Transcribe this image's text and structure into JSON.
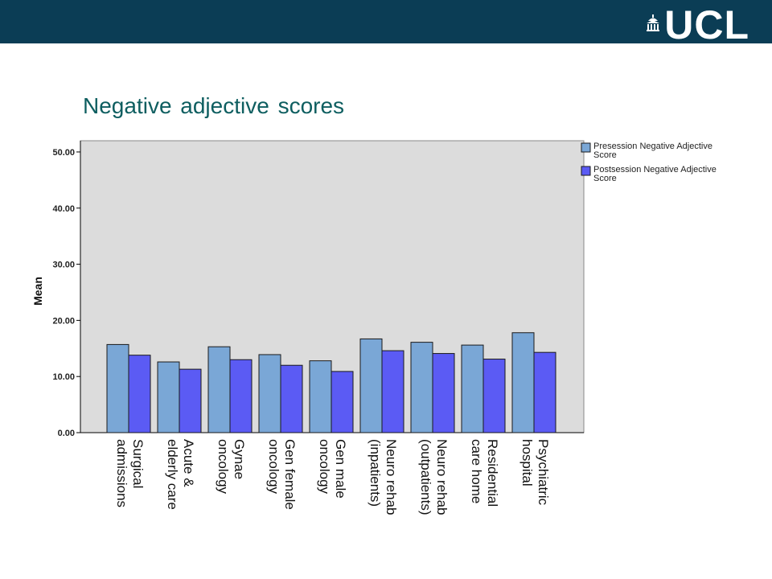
{
  "header": {
    "logo_text": "UCL",
    "emblem": "ucl-portico-icon",
    "bar_color": "#0b3d55"
  },
  "slide": {
    "title": "Negative adjective scores"
  },
  "chart_data": {
    "type": "bar",
    "ylabel": "Mean",
    "ylim": [
      0,
      52
    ],
    "yticks": [
      0,
      10,
      20,
      30,
      40,
      50
    ],
    "ytick_labels": [
      "0.00",
      "10.00",
      "20.00",
      "30.00",
      "40.00",
      "50.00"
    ],
    "legend_position": "right",
    "grid": false,
    "categories": [
      "Surgical\nadmissions",
      "Acute &\nelderly care",
      "Gynae\noncology",
      "Gen female\noncology",
      "Gen male\noncology",
      "Neuro rehab\n(inpatients)",
      "Neuro rehab\n(outpatients)",
      "Residential\ncare home",
      "Psychiatric\nhospital"
    ],
    "series": [
      {
        "name": "Presession Negative Adjective Score",
        "color": "#7aa7d6",
        "values": [
          15.7,
          12.6,
          15.3,
          13.9,
          12.8,
          16.7,
          16.1,
          15.6,
          17.8
        ]
      },
      {
        "name": "Postsession Negative Adjective Score",
        "color": "#5b5bf4",
        "values": [
          13.8,
          11.3,
          13.0,
          12.0,
          10.9,
          14.6,
          14.1,
          13.1,
          14.3
        ]
      }
    ]
  }
}
